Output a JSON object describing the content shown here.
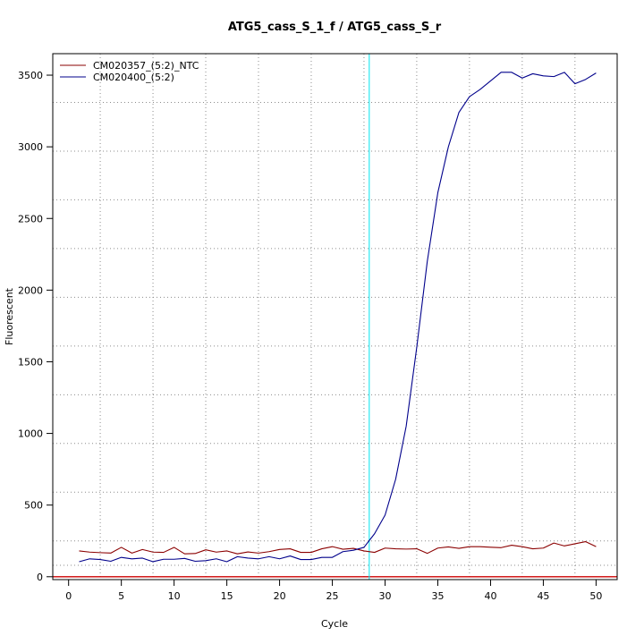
{
  "chart_data": {
    "type": "line",
    "title": "ATG5_cass_S_1_f / ATG5_cass_S_r",
    "xlabel": "Cycle",
    "ylabel": "Fluorescent",
    "xlim": [
      -1.5,
      52
    ],
    "ylim": [
      -20,
      3650
    ],
    "x_ticks": [
      0,
      5,
      10,
      15,
      20,
      25,
      30,
      35,
      40,
      45,
      50
    ],
    "y_ticks": [
      0,
      500,
      1000,
      1500,
      2000,
      2500,
      3000,
      3500
    ],
    "x_grid": [
      3,
      8,
      13,
      18,
      23,
      28,
      33,
      38,
      43,
      48
    ],
    "y_grid": [
      80,
      250,
      590,
      930,
      1270,
      1610,
      1950,
      2290,
      2630,
      2970,
      3310,
      3650
    ],
    "grid": true,
    "legend_position": "top-left",
    "threshold": {
      "x": 28.5,
      "color": "#00e5ee"
    },
    "baseline": {
      "y": 0,
      "color": "#cc0000"
    },
    "x": [
      1,
      2,
      3,
      4,
      5,
      6,
      7,
      8,
      9,
      10,
      11,
      12,
      13,
      14,
      15,
      16,
      17,
      18,
      19,
      20,
      21,
      22,
      23,
      24,
      25,
      26,
      27,
      28,
      29,
      30,
      31,
      32,
      33,
      34,
      35,
      36,
      37,
      38,
      39,
      40,
      41,
      42,
      43,
      44,
      45,
      46,
      47,
      48,
      49,
      50
    ],
    "series": [
      {
        "name": "CM020357_(5:2)_NTC",
        "color": "#8b0000",
        "values": [
          180,
          172,
          168,
          165,
          205,
          165,
          190,
          172,
          170,
          205,
          160,
          162,
          188,
          172,
          180,
          160,
          173,
          165,
          175,
          190,
          195,
          170,
          170,
          195,
          210,
          192,
          198,
          180,
          170,
          200,
          195,
          193,
          195,
          163,
          200,
          208,
          198,
          210,
          210,
          206,
          203,
          220,
          210,
          195,
          200,
          235,
          215,
          230,
          245,
          210
        ]
      },
      {
        "name": "CM020400_(5:2)",
        "color": "#00008b",
        "values": [
          105,
          125,
          120,
          108,
          135,
          125,
          130,
          105,
          122,
          122,
          128,
          108,
          112,
          125,
          105,
          140,
          130,
          125,
          140,
          125,
          145,
          120,
          120,
          135,
          135,
          175,
          185,
          205,
          300,
          430,
          680,
          1050,
          1600,
          2200,
          2680,
          3000,
          3240,
          3350,
          3400,
          3460,
          3520,
          3520,
          3480,
          3510,
          3495,
          3490,
          3520,
          3440,
          3470,
          3515
        ]
      }
    ]
  }
}
